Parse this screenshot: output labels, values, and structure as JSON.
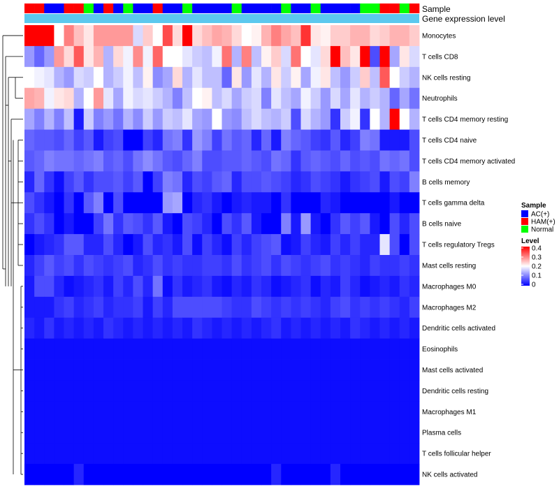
{
  "chart_data": {
    "type": "heatmap",
    "annotation_tracks": [
      "Sample",
      "Gene expression level"
    ],
    "rows": [
      "Monocytes",
      "T cells CD8",
      "NK cells resting",
      "Neutrophils",
      "T cells CD4 memory resting",
      "T cells CD4 naive",
      "T cells CD4 memory activated",
      "B cells memory",
      "T cells gamma delta",
      "B cells naive",
      "T cells regulatory  Tregs",
      "Mast cells resting",
      "Macrophages M0",
      "Macrophages M2",
      "Dendritic cells activated",
      "Eosinophils",
      "Mast cells activated",
      "Dendritic cells resting",
      "Macrophages M1",
      "Plasma cells",
      "T cells follicular helper",
      "NK cells activated"
    ],
    "sample_groups": [
      "HAM(+)",
      "HAM(+)",
      "AC(+)",
      "AC(+)",
      "HAM(+)",
      "HAM(+)",
      "Normal",
      "AC(+)",
      "HAM(+)",
      "AC(+)",
      "Normal",
      "AC(+)",
      "AC(+)",
      "HAM(+)",
      "AC(+)",
      "AC(+)",
      "Normal",
      "AC(+)",
      "AC(+)",
      "AC(+)",
      "AC(+)",
      "Normal",
      "AC(+)",
      "AC(+)",
      "AC(+)",
      "AC(+)",
      "Normal",
      "AC(+)",
      "AC(+)",
      "Normal",
      "AC(+)",
      "AC(+)",
      "AC(+)",
      "AC(+)",
      "Normal",
      "Normal",
      "HAM(+)",
      "HAM(+)",
      "Normal",
      "HAM(+)"
    ],
    "values": [
      [
        0.4,
        0.4,
        0.4,
        0.2,
        0.3,
        0.25,
        0.22,
        0.28,
        0.28,
        0.28,
        0.28,
        0.17,
        0.24,
        0.2,
        0.34,
        0.23,
        0.4,
        0.23,
        0.25,
        0.27,
        0.26,
        0.23,
        0.2,
        0.21,
        0.26,
        0.3,
        0.27,
        0.25,
        0.36,
        0.22,
        0.21,
        0.24,
        0.24,
        0.26,
        0.26,
        0.23,
        0.24,
        0.26,
        0.26,
        0.24
      ],
      [
        0.12,
        0.08,
        0.12,
        0.28,
        0.23,
        0.33,
        0.22,
        0.26,
        0.14,
        0.23,
        0.19,
        0.29,
        0.19,
        0.32,
        0.2,
        0.2,
        0.18,
        0.16,
        0.15,
        0.19,
        0.31,
        0.14,
        0.3,
        0.15,
        0.21,
        0.24,
        0.17,
        0.31,
        0.2,
        0.18,
        0.23,
        0.4,
        0.25,
        0.22,
        0.4,
        0.06,
        0.4,
        0.13,
        0.22,
        0.17
      ],
      [
        0.2,
        0.19,
        0.18,
        0.14,
        0.12,
        0.17,
        0.16,
        0.2,
        0.14,
        0.16,
        0.19,
        0.15,
        0.21,
        0.11,
        0.13,
        0.23,
        0.14,
        0.18,
        0.15,
        0.15,
        0.08,
        0.22,
        0.12,
        0.18,
        0.14,
        0.22,
        0.16,
        0.21,
        0.13,
        0.19,
        0.22,
        0.15,
        0.12,
        0.16,
        0.24,
        0.15,
        0.33,
        0.2,
        0.16,
        0.14
      ],
      [
        0.27,
        0.26,
        0.19,
        0.22,
        0.23,
        0.14,
        0.2,
        0.28,
        0.18,
        0.13,
        0.19,
        0.17,
        0.18,
        0.16,
        0.14,
        0.1,
        0.15,
        0.2,
        0.21,
        0.15,
        0.17,
        0.13,
        0.16,
        0.17,
        0.1,
        0.18,
        0.15,
        0.13,
        0.19,
        0.16,
        0.12,
        0.17,
        0.13,
        0.18,
        0.14,
        0.16,
        0.14,
        0.08,
        0.13,
        0.09
      ],
      [
        0.13,
        0.1,
        0.14,
        0.1,
        0.15,
        0.02,
        0.16,
        0.1,
        0.12,
        0.09,
        0.14,
        0.11,
        0.16,
        0.12,
        0.16,
        0.15,
        0.18,
        0.13,
        0.12,
        0.2,
        0.12,
        0.11,
        0.15,
        0.17,
        0.15,
        0.14,
        0.16,
        0.06,
        0.17,
        0.14,
        0.12,
        0.04,
        0.16,
        0.19,
        0.04,
        0.2,
        0.14,
        0.4,
        0.2,
        0.14
      ],
      [
        0.08,
        0.07,
        0.07,
        0.06,
        0.08,
        0.05,
        0.07,
        0.02,
        0.05,
        0.06,
        0.0,
        0.0,
        0.05,
        0.03,
        0.09,
        0.1,
        0.04,
        0.12,
        0.1,
        0.05,
        0.09,
        0.07,
        0.08,
        0.03,
        0.08,
        0.02,
        0.1,
        0.08,
        0.07,
        0.05,
        0.04,
        0.07,
        0.03,
        0.05,
        0.1,
        0.09,
        0.02,
        0.02,
        0.02,
        0.06
      ],
      [
        0.07,
        0.08,
        0.1,
        0.09,
        0.09,
        0.08,
        0.09,
        0.1,
        0.07,
        0.08,
        0.06,
        0.09,
        0.11,
        0.09,
        0.07,
        0.06,
        0.08,
        0.1,
        0.06,
        0.06,
        0.07,
        0.07,
        0.08,
        0.07,
        0.06,
        0.09,
        0.08,
        0.04,
        0.07,
        0.08,
        0.07,
        0.06,
        0.08,
        0.06,
        0.07,
        0.06,
        0.09,
        0.08,
        0.09,
        0.06
      ],
      [
        0.03,
        0.08,
        0.04,
        0.01,
        0.05,
        0.07,
        0.04,
        0.06,
        0.06,
        0.07,
        0.05,
        0.07,
        0.0,
        0.05,
        0.1,
        0.09,
        0.03,
        0.06,
        0.05,
        0.07,
        0.08,
        0.03,
        0.06,
        0.06,
        0.07,
        0.06,
        0.05,
        0.03,
        0.04,
        0.06,
        0.05,
        0.04,
        0.02,
        0.04,
        0.05,
        0.06,
        0.02,
        0.06,
        0.05,
        0.1
      ],
      [
        0.06,
        0.04,
        0.02,
        0.0,
        0.04,
        0.0,
        0.07,
        0.1,
        0.0,
        0.06,
        0.0,
        0.0,
        0.0,
        0.0,
        0.12,
        0.13,
        0.0,
        0.03,
        0.04,
        0.02,
        0.0,
        0.02,
        0.03,
        0.02,
        0.02,
        0.0,
        0.04,
        0.0,
        0.0,
        0.0,
        0.03,
        0.02,
        0.0,
        0.0,
        0.0,
        0.0,
        0.0,
        0.02,
        0.0,
        0.0
      ],
      [
        0.04,
        0.06,
        0.04,
        0.0,
        0.02,
        0.0,
        0.0,
        0.05,
        0.09,
        0.04,
        0.07,
        0.06,
        0.04,
        0.07,
        0.02,
        0.0,
        0.06,
        0.05,
        0.03,
        0.0,
        0.06,
        0.04,
        0.07,
        0.02,
        0.0,
        0.0,
        0.1,
        0.02,
        0.12,
        0.02,
        0.0,
        0.04,
        0.07,
        0.05,
        0.07,
        0.02,
        0.0,
        0.06,
        0.03,
        0.06
      ],
      [
        0.0,
        0.02,
        0.03,
        0.04,
        0.07,
        0.07,
        0.03,
        0.03,
        0.06,
        0.03,
        0.0,
        0.02,
        0.06,
        0.03,
        0.04,
        0.02,
        0.06,
        0.01,
        0.05,
        0.03,
        0.01,
        0.05,
        0.03,
        0.05,
        0.06,
        0.07,
        0.01,
        0.02,
        0.05,
        0.03,
        0.02,
        0.05,
        0.03,
        0.05,
        0.03,
        0.03,
        0.18,
        0.06,
        0.0,
        0.06
      ],
      [
        0.03,
        0.05,
        0.07,
        0.05,
        0.06,
        0.04,
        0.06,
        0.05,
        0.04,
        0.05,
        0.06,
        0.03,
        0.04,
        0.06,
        0.04,
        0.05,
        0.04,
        0.04,
        0.05,
        0.05,
        0.04,
        0.06,
        0.04,
        0.05,
        0.06,
        0.04,
        0.06,
        0.05,
        0.04,
        0.05,
        0.06,
        0.04,
        0.05,
        0.04,
        0.03,
        0.05,
        0.04,
        0.04,
        0.05,
        0.04
      ],
      [
        0.02,
        0.06,
        0.06,
        0.03,
        0.01,
        0.02,
        0.03,
        0.04,
        0.02,
        0.05,
        0.03,
        0.06,
        0.03,
        0.09,
        0.01,
        0.04,
        0.02,
        0.03,
        0.04,
        0.02,
        0.01,
        0.03,
        0.02,
        0.04,
        0.03,
        0.01,
        0.02,
        0.03,
        0.04,
        0.01,
        0.03,
        0.02,
        0.05,
        0.03,
        0.01,
        0.02,
        0.03,
        0.02,
        0.04,
        0.03
      ],
      [
        0.02,
        0.02,
        0.02,
        0.04,
        0.05,
        0.03,
        0.04,
        0.05,
        0.03,
        0.04,
        0.04,
        0.05,
        0.02,
        0.05,
        0.03,
        0.06,
        0.06,
        0.06,
        0.06,
        0.06,
        0.05,
        0.04,
        0.04,
        0.06,
        0.05,
        0.04,
        0.05,
        0.04,
        0.05,
        0.04,
        0.03,
        0.05,
        0.06,
        0.04,
        0.05,
        0.04,
        0.05,
        0.04,
        0.03,
        0.05
      ],
      [
        0.03,
        0.02,
        0.04,
        0.02,
        0.03,
        0.02,
        0.03,
        0.02,
        0.04,
        0.03,
        0.02,
        0.03,
        0.02,
        0.03,
        0.02,
        0.03,
        0.02,
        0.04,
        0.03,
        0.02,
        0.03,
        0.02,
        0.03,
        0.02,
        0.03,
        0.04,
        0.02,
        0.03,
        0.02,
        0.03,
        0.02,
        0.03,
        0.02,
        0.04,
        0.03,
        0.02,
        0.03,
        0.02,
        0.03,
        0.02
      ],
      [
        0.01,
        0.01,
        0.01,
        0.01,
        0.01,
        0.01,
        0.01,
        0.01,
        0.01,
        0.01,
        0.01,
        0.01,
        0.01,
        0.01,
        0.01,
        0.01,
        0.01,
        0.01,
        0.01,
        0.01,
        0.01,
        0.01,
        0.01,
        0.01,
        0.01,
        0.01,
        0.01,
        0.01,
        0.01,
        0.01,
        0.01,
        0.01,
        0.01,
        0.01,
        0.01,
        0.01,
        0.01,
        0.01,
        0.01,
        0.01
      ],
      [
        0.01,
        0.01,
        0.01,
        0.01,
        0.01,
        0.01,
        0.01,
        0.01,
        0.01,
        0.01,
        0.01,
        0.01,
        0.01,
        0.01,
        0.01,
        0.01,
        0.01,
        0.01,
        0.01,
        0.01,
        0.01,
        0.01,
        0.01,
        0.01,
        0.01,
        0.01,
        0.01,
        0.01,
        0.01,
        0.01,
        0.01,
        0.01,
        0.01,
        0.01,
        0.01,
        0.01,
        0.01,
        0.01,
        0.01,
        0.01
      ],
      [
        0.01,
        0.01,
        0.01,
        0.01,
        0.01,
        0.01,
        0.01,
        0.01,
        0.01,
        0.01,
        0.01,
        0.01,
        0.01,
        0.01,
        0.01,
        0.01,
        0.01,
        0.01,
        0.01,
        0.01,
        0.01,
        0.01,
        0.01,
        0.01,
        0.01,
        0.01,
        0.01,
        0.01,
        0.01,
        0.01,
        0.01,
        0.01,
        0.01,
        0.01,
        0.01,
        0.01,
        0.01,
        0.01,
        0.01,
        0.01
      ],
      [
        0.01,
        0.01,
        0.01,
        0.01,
        0.01,
        0.01,
        0.01,
        0.01,
        0.01,
        0.01,
        0.01,
        0.01,
        0.01,
        0.01,
        0.01,
        0.01,
        0.01,
        0.01,
        0.01,
        0.01,
        0.01,
        0.01,
        0.01,
        0.01,
        0.01,
        0.01,
        0.01,
        0.01,
        0.01,
        0.01,
        0.01,
        0.01,
        0.01,
        0.01,
        0.01,
        0.01,
        0.01,
        0.01,
        0.01,
        0.01
      ],
      [
        0.01,
        0.01,
        0.01,
        0.01,
        0.01,
        0.01,
        0.01,
        0.01,
        0.01,
        0.01,
        0.01,
        0.01,
        0.01,
        0.01,
        0.01,
        0.01,
        0.01,
        0.01,
        0.01,
        0.01,
        0.01,
        0.01,
        0.01,
        0.01,
        0.01,
        0.01,
        0.01,
        0.01,
        0.01,
        0.01,
        0.01,
        0.01,
        0.01,
        0.01,
        0.01,
        0.01,
        0.01,
        0.01,
        0.01,
        0.01
      ],
      [
        0.01,
        0.01,
        0.01,
        0.01,
        0.01,
        0.01,
        0.01,
        0.01,
        0.01,
        0.01,
        0.01,
        0.01,
        0.01,
        0.01,
        0.01,
        0.01,
        0.01,
        0.01,
        0.01,
        0.01,
        0.01,
        0.01,
        0.01,
        0.01,
        0.01,
        0.01,
        0.01,
        0.01,
        0.01,
        0.01,
        0.01,
        0.01,
        0.01,
        0.01,
        0.01,
        0.01,
        0.01,
        0.01,
        0.01,
        0.01
      ],
      [
        0.0,
        0.0,
        0.0,
        0.0,
        0.0,
        0.03,
        0.0,
        0.0,
        0.0,
        0.0,
        0.0,
        0.0,
        0.0,
        0.0,
        0.0,
        0.0,
        0.0,
        0.0,
        0.0,
        0.0,
        0.0,
        0.0,
        0.0,
        0.0,
        0.0,
        0.03,
        0.0,
        0.0,
        0.0,
        0.0,
        0.0,
        0.03,
        0.0,
        0.0,
        0.0,
        0.0,
        0.0,
        0.0,
        0.0,
        0.0
      ]
    ],
    "legend": {
      "sample": {
        "title": "Sample",
        "items": [
          {
            "label": "AC(+)",
            "color": "#0000ff"
          },
          {
            "label": "HAM(+)",
            "color": "#ff0000"
          },
          {
            "label": "Normal",
            "color": "#00ff00"
          }
        ]
      },
      "level": {
        "title": "Level",
        "range": [
          0,
          0.4
        ],
        "ticks": [
          "0.4",
          "0.3",
          "0.2",
          "0.1",
          "0"
        ],
        "colors": [
          "#0000ff",
          "#ffffff",
          "#ff0000"
        ]
      }
    },
    "gene_expression_color": "#5bc8ee"
  }
}
